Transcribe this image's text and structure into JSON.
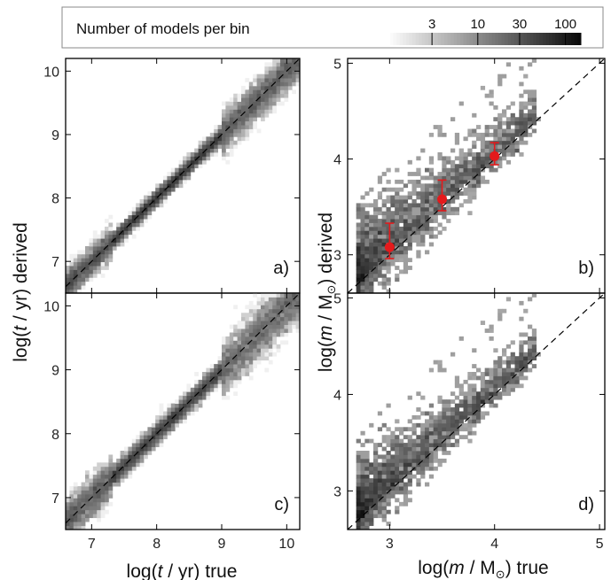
{
  "colorbar": {
    "title": "Number of models per bin",
    "ticks": [
      "3",
      "10",
      "30",
      "100"
    ],
    "scale": "log",
    "range": [
      1,
      150
    ],
    "colormap": "white-to-black"
  },
  "axes": {
    "x_left_label_pre": "log(",
    "x_left_label_var": "t",
    "x_left_label_post": " / yr) true",
    "y_left_label_pre": "log(",
    "y_left_label_var": "t",
    "y_left_label_post": " / yr) derived",
    "x_right_label_pre": "log(",
    "x_right_label_var": "m",
    "x_right_label_mid": " / M",
    "x_right_label_post": ") true",
    "y_right_label_pre": "log(",
    "y_right_label_var": "m",
    "y_right_label_mid": " / M",
    "y_right_label_post": ") derived",
    "solar_symbol": "⊙"
  },
  "chart_data": [
    {
      "panel": "a)",
      "type": "heatmap",
      "xlim": [
        6.6,
        10.2
      ],
      "ylim": [
        6.5,
        10.2
      ],
      "xticks": [
        7,
        8,
        9,
        10
      ],
      "yticks": [
        7,
        8,
        9,
        10
      ],
      "reference_line": "y = x (dashed)",
      "description_of_density": "narrow diagonal band along y=x, broader scatter above 9 and below 7.2"
    },
    {
      "panel": "b)",
      "type": "heatmap",
      "xlim": [
        2.6,
        5.05
      ],
      "ylim": [
        2.6,
        5.05
      ],
      "xticks": [
        3,
        4,
        5
      ],
      "yticks": [
        3,
        4,
        5
      ],
      "reference_line": "y = x (dashed)",
      "error_points": [
        {
          "x": 3.0,
          "y": 3.08,
          "yerr_low": 0.12,
          "yerr_high": 0.25
        },
        {
          "x": 3.5,
          "y": 3.58,
          "yerr_low": 0.12,
          "yerr_high": 0.2
        },
        {
          "x": 4.0,
          "y": 4.03,
          "yerr_low": 0.09,
          "yerr_high": 0.14
        }
      ],
      "error_point_color": "#e41a1c"
    },
    {
      "panel": "c)",
      "type": "heatmap",
      "xlim": [
        6.6,
        10.2
      ],
      "ylim": [
        6.5,
        10.2
      ],
      "xticks": [
        7,
        8,
        9,
        10
      ],
      "yticks": [
        7,
        8,
        9,
        10
      ],
      "reference_line": "y = x (dashed)"
    },
    {
      "panel": "d)",
      "type": "heatmap",
      "xlim": [
        2.6,
        5.05
      ],
      "ylim": [
        2.6,
        5.05
      ],
      "xticks": [
        3,
        4,
        5
      ],
      "yticks": [
        3,
        4,
        5
      ],
      "reference_line": "y = x (dashed)"
    }
  ]
}
